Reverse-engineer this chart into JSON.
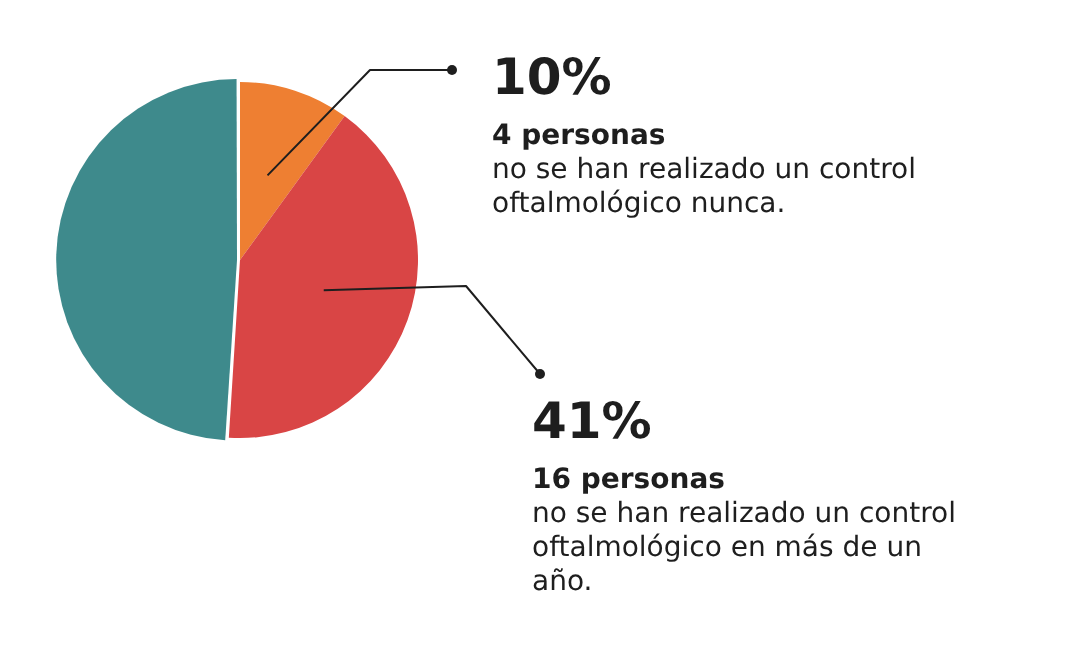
{
  "chart_data": {
    "type": "pie",
    "categories": [
      null,
      null,
      null
    ],
    "values": [
      10,
      41,
      49
    ],
    "colors": [
      "#ee7f32",
      "#d94545",
      "#3e8a8c"
    ],
    "value_labels": [
      "10%",
      "41%",
      null
    ],
    "annotations": [
      "4 personas",
      "no se han realizado un control oftalmológico nunca.",
      "16 personas",
      "no se han realizado un control oftalmológico en más de un año."
    ],
    "legend": false
  }
}
